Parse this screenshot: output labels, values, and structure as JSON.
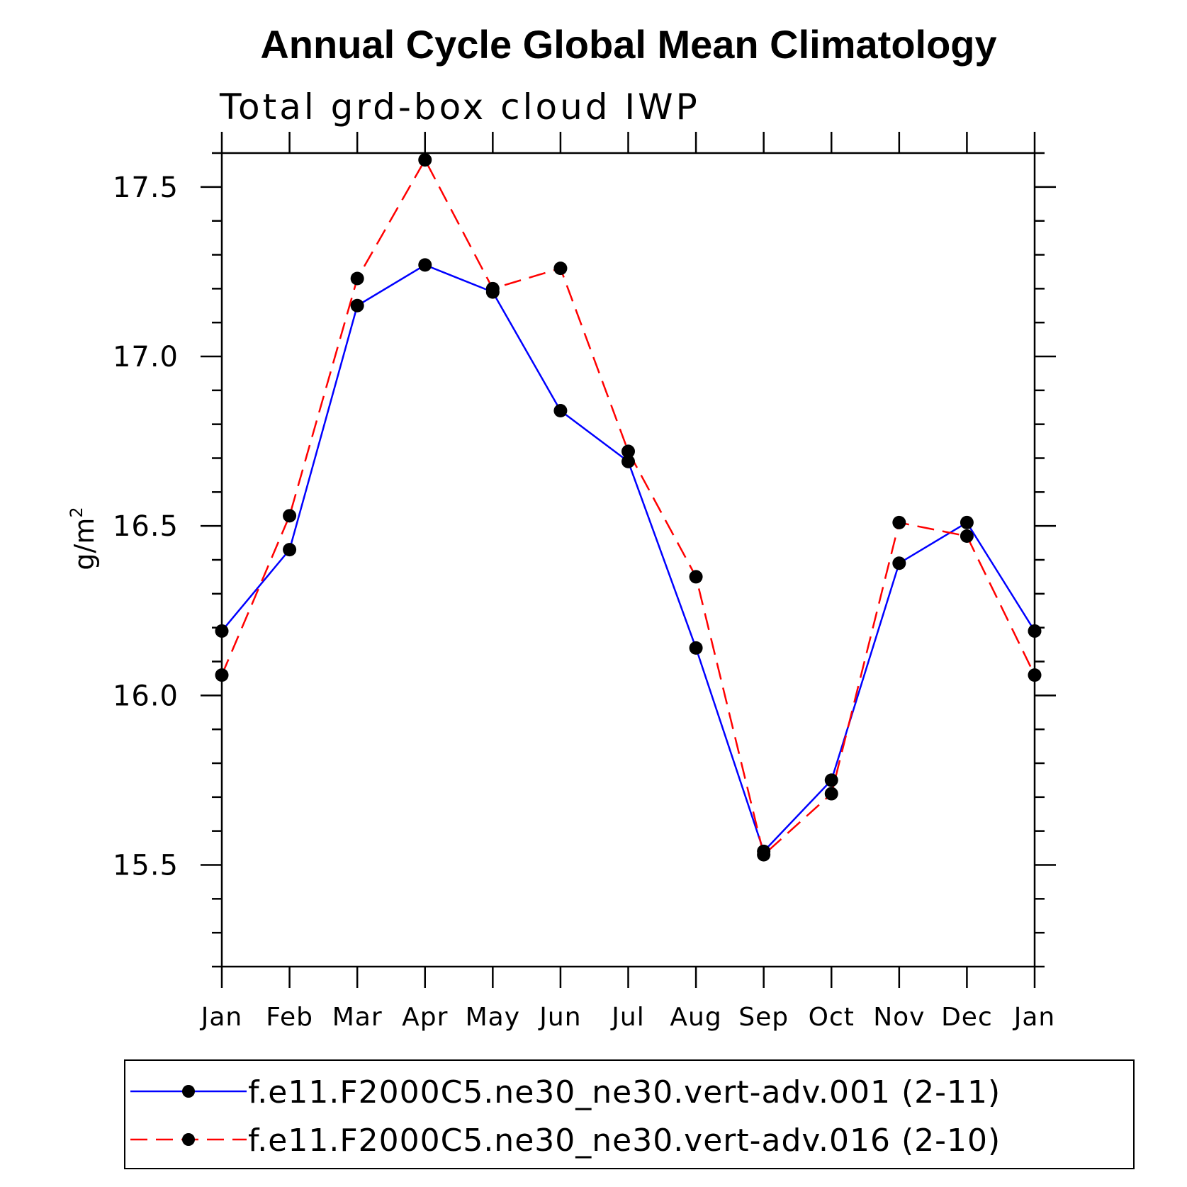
{
  "chart_data": {
    "type": "line",
    "title": "Annual Cycle Global Mean Climatology",
    "subtitle": "Total grd-box cloud IWP",
    "xlabel": "",
    "ylabel": "g/m",
    "ylabel_superscript": "2",
    "categories": [
      "Jan",
      "Feb",
      "Mar",
      "Apr",
      "May",
      "Jun",
      "Jul",
      "Aug",
      "Sep",
      "Oct",
      "Nov",
      "Dec",
      "Jan"
    ],
    "ylim": [
      15.2,
      17.6
    ],
    "yticks": [
      15.5,
      16.0,
      16.5,
      17.0,
      17.5
    ],
    "ytick_labels": [
      "15.5",
      "16.0",
      "16.5",
      "17.0",
      "17.5"
    ],
    "series": [
      {
        "name": "f.e11.F2000C5.ne30_ne30.vert-adv.001 (2-11)",
        "color": "#0000ff",
        "style": "solid",
        "values": [
          16.19,
          16.43,
          17.15,
          17.27,
          17.19,
          16.84,
          16.69,
          16.14,
          15.54,
          15.75,
          16.39,
          16.51,
          16.19
        ]
      },
      {
        "name": "f.e11.F2000C5.ne30_ne30.vert-adv.016 (2-10)",
        "color": "#ff0000",
        "style": "dashed",
        "values": [
          16.06,
          16.53,
          17.23,
          17.58,
          17.2,
          17.26,
          16.72,
          16.35,
          15.53,
          15.71,
          16.51,
          16.47,
          16.06
        ]
      }
    ],
    "legend_position": "bottom"
  }
}
